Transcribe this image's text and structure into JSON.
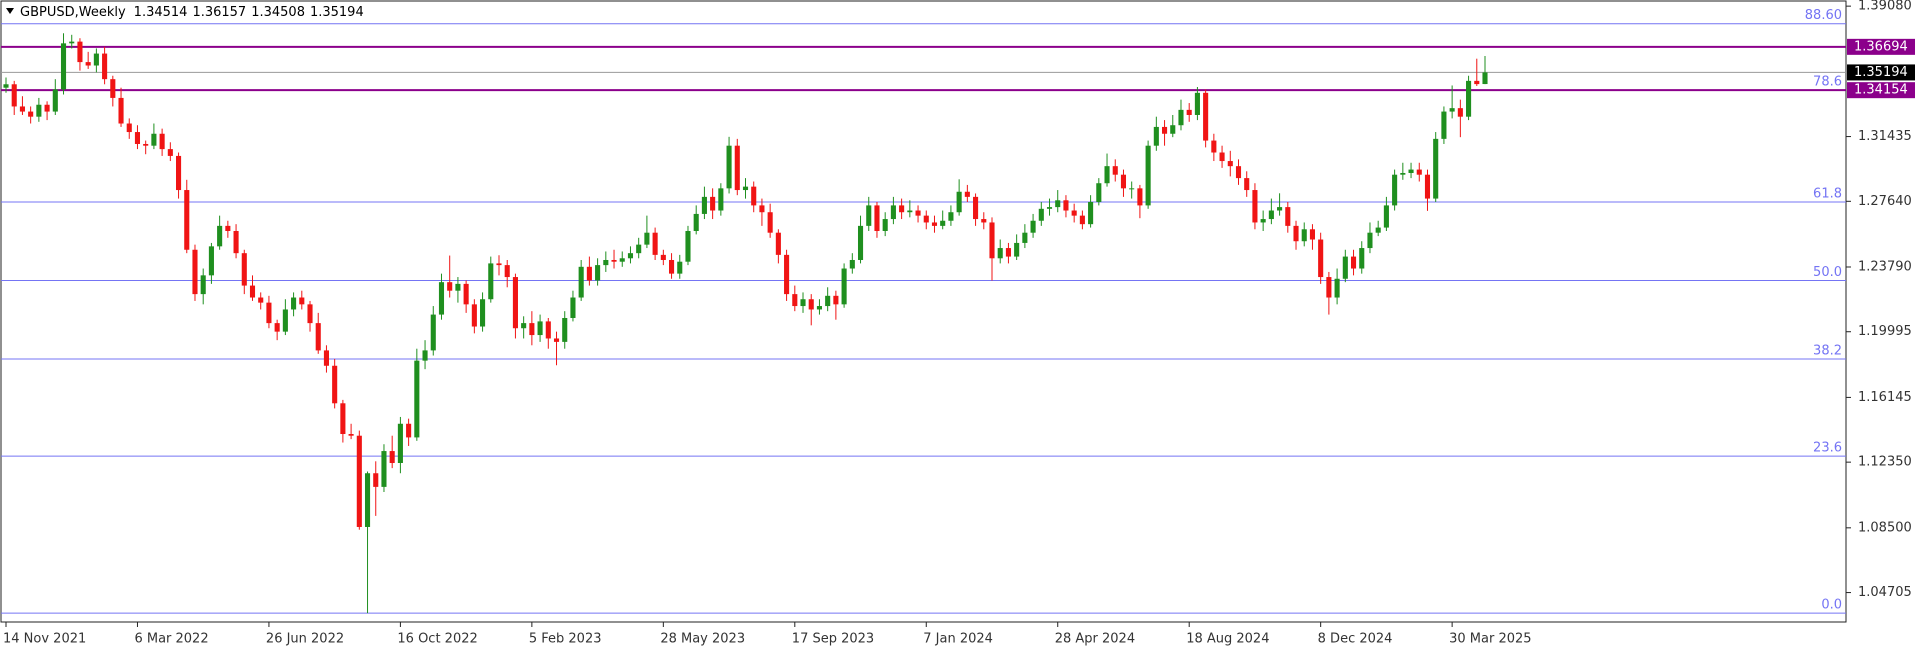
{
  "chart_data": {
    "type": "candlestick",
    "symbol": "GBPUSD,Weekly",
    "up_color": "#1f8f1f",
    "down_color": "#f01414",
    "grid": false,
    "ylim": [
      1.0298,
      1.3944
    ],
    "yticks": [
      {
        "value": 1.3908,
        "label": "1.39080"
      },
      1.31435,
      {
        "value": 1.2764,
        "label": "1.27640"
      },
      {
        "value": 1.2379,
        "label": "1.23790"
      },
      1.19995,
      1.16145,
      {
        "value": 1.1235,
        "label": "1.12350"
      },
      {
        "value": 1.085,
        "label": "1.08500"
      },
      1.04705
    ],
    "fib_color": "#7474f4",
    "fib_levels": [
      {
        "label": "88.60",
        "price": 1.3805
      },
      {
        "label": "78.6",
        "price": 1.3415
      },
      {
        "label": "61.8",
        "price": 1.276
      },
      {
        "label": "50.0",
        "price": 1.23
      },
      {
        "label": "38.2",
        "price": 1.184
      },
      {
        "label": "23.6",
        "price": 1.127
      },
      {
        "label": "0.0",
        "price": 1.035
      }
    ],
    "level_color": "#8b008b",
    "levels": [
      1.36694,
      1.34154
    ],
    "categories": [
      "14 Nov 2021",
      null,
      null,
      null,
      null,
      null,
      null,
      null,
      null,
      null,
      null,
      null,
      null,
      null,
      null,
      null,
      "6 Mar 2022",
      null,
      null,
      null,
      null,
      null,
      null,
      null,
      null,
      null,
      null,
      null,
      null,
      null,
      null,
      null,
      "26 Jun 2022",
      null,
      null,
      null,
      null,
      null,
      null,
      null,
      null,
      null,
      null,
      null,
      null,
      null,
      null,
      null,
      "16 Oct 2022",
      null,
      null,
      null,
      null,
      null,
      null,
      null,
      null,
      null,
      null,
      null,
      null,
      null,
      null,
      null,
      "5 Feb 2023",
      null,
      null,
      null,
      null,
      null,
      null,
      null,
      null,
      null,
      null,
      null,
      null,
      null,
      null,
      null,
      "28 May 2023",
      null,
      null,
      null,
      null,
      null,
      null,
      null,
      null,
      null,
      null,
      null,
      null,
      null,
      null,
      null,
      "17 Sep 2023",
      null,
      null,
      null,
      null,
      null,
      null,
      null,
      null,
      null,
      null,
      null,
      null,
      null,
      null,
      null,
      "7 Jan 2024",
      null,
      null,
      null,
      null,
      null,
      null,
      null,
      null,
      null,
      null,
      null,
      null,
      null,
      null,
      null,
      "28 Apr 2024",
      null,
      null,
      null,
      null,
      null,
      null,
      null,
      null,
      null,
      null,
      null,
      null,
      null,
      null,
      null,
      "18 Aug 2024",
      null,
      null,
      null,
      null,
      null,
      null,
      null,
      null,
      null,
      null,
      null,
      null,
      null,
      null,
      null,
      "8 Dec 2024",
      null,
      null,
      null,
      null,
      null,
      null,
      null,
      null,
      null,
      null,
      null,
      null,
      null,
      null,
      null,
      "30 Mar 2025",
      null,
      null,
      null,
      null
    ],
    "ohlc": [
      [
        1.343,
        1.349,
        1.34,
        1.345
      ],
      [
        1.345,
        1.347,
        1.327,
        1.332
      ],
      [
        1.332,
        1.338,
        1.327,
        1.329
      ],
      [
        1.329,
        1.332,
        1.322,
        1.326
      ],
      [
        1.326,
        1.337,
        1.323,
        1.333
      ],
      [
        1.333,
        1.335,
        1.324,
        1.329
      ],
      [
        1.329,
        1.348,
        1.327,
        1.342
      ],
      [
        1.342,
        1.3749,
        1.339,
        1.369
      ],
      [
        1.369,
        1.374,
        1.366,
        1.37
      ],
      [
        1.37,
        1.372,
        1.353,
        1.358
      ],
      [
        1.358,
        1.364,
        1.354,
        1.356
      ],
      [
        1.356,
        1.366,
        1.352,
        1.363
      ],
      [
        1.363,
        1.367,
        1.345,
        1.348
      ],
      [
        1.348,
        1.35,
        1.332,
        1.337
      ],
      [
        1.337,
        1.343,
        1.32,
        1.322
      ],
      [
        1.322,
        1.325,
        1.313,
        1.317
      ],
      [
        1.317,
        1.321,
        1.307,
        1.31
      ],
      [
        1.31,
        1.312,
        1.304,
        1.309
      ],
      [
        1.309,
        1.322,
        1.307,
        1.316
      ],
      [
        1.316,
        1.319,
        1.303,
        1.307
      ],
      [
        1.307,
        1.311,
        1.3,
        1.303
      ],
      [
        1.303,
        1.305,
        1.278,
        1.283
      ],
      [
        1.283,
        1.289,
        1.246,
        1.248
      ],
      [
        1.248,
        1.251,
        1.218,
        1.222
      ],
      [
        1.222,
        1.237,
        1.216,
        1.233
      ],
      [
        1.233,
        1.252,
        1.228,
        1.25
      ],
      [
        1.25,
        1.268,
        1.248,
        1.262
      ],
      [
        1.262,
        1.265,
        1.255,
        1.259
      ],
      [
        1.259,
        1.263,
        1.243,
        1.246
      ],
      [
        1.246,
        1.248,
        1.222,
        1.227
      ],
      [
        1.227,
        1.233,
        1.218,
        1.22
      ],
      [
        1.22,
        1.223,
        1.213,
        1.217
      ],
      [
        1.217,
        1.221,
        1.202,
        1.205
      ],
      [
        1.205,
        1.207,
        1.195,
        1.2
      ],
      [
        1.2,
        1.219,
        1.198,
        1.213
      ],
      [
        1.213,
        1.223,
        1.209,
        1.22
      ],
      [
        1.22,
        1.224,
        1.213,
        1.216
      ],
      [
        1.216,
        1.218,
        1.2,
        1.205
      ],
      [
        1.205,
        1.211,
        1.187,
        1.189
      ],
      [
        1.189,
        1.192,
        1.176,
        1.18
      ],
      [
        1.18,
        1.184,
        1.155,
        1.158
      ],
      [
        1.158,
        1.16,
        1.135,
        1.14
      ],
      [
        1.14,
        1.146,
        1.137,
        1.139
      ],
      [
        1.139,
        1.142,
        1.0839,
        1.0855
      ],
      [
        1.0855,
        1.118,
        1.035,
        1.117
      ],
      [
        1.117,
        1.124,
        1.092,
        1.109
      ],
      [
        1.109,
        1.134,
        1.106,
        1.13
      ],
      [
        1.13,
        1.139,
        1.12,
        1.123
      ],
      [
        1.123,
        1.15,
        1.117,
        1.146
      ],
      [
        1.146,
        1.149,
        1.133,
        1.138
      ],
      [
        1.138,
        1.19,
        1.136,
        1.183
      ],
      [
        1.183,
        1.195,
        1.178,
        1.189
      ],
      [
        1.189,
        1.215,
        1.186,
        1.21
      ],
      [
        1.21,
        1.234,
        1.207,
        1.229
      ],
      [
        1.229,
        1.2446,
        1.22,
        1.224
      ],
      [
        1.224,
        1.232,
        1.217,
        1.228
      ],
      [
        1.228,
        1.23,
        1.211,
        1.216
      ],
      [
        1.216,
        1.219,
        1.199,
        1.203
      ],
      [
        1.203,
        1.223,
        1.2,
        1.219
      ],
      [
        1.219,
        1.244,
        1.217,
        1.24
      ],
      [
        1.24,
        1.2448,
        1.233,
        1.239
      ],
      [
        1.239,
        1.242,
        1.226,
        1.232
      ],
      [
        1.232,
        1.234,
        1.196,
        1.202
      ],
      [
        1.202,
        1.209,
        1.196,
        1.205
      ],
      [
        1.205,
        1.212,
        1.192,
        1.198
      ],
      [
        1.198,
        1.21,
        1.194,
        1.206
      ],
      [
        1.206,
        1.208,
        1.19,
        1.196
      ],
      [
        1.196,
        1.2,
        1.1803,
        1.194
      ],
      [
        1.194,
        1.212,
        1.19,
        1.208
      ],
      [
        1.208,
        1.224,
        1.206,
        1.22
      ],
      [
        1.22,
        1.242,
        1.218,
        1.238
      ],
      [
        1.238,
        1.244,
        1.227,
        1.23
      ],
      [
        1.23,
        1.243,
        1.227,
        1.239
      ],
      [
        1.239,
        1.247,
        1.235,
        1.242
      ],
      [
        1.242,
        1.248,
        1.237,
        1.241
      ],
      [
        1.241,
        1.247,
        1.238,
        1.243
      ],
      [
        1.243,
        1.25,
        1.24,
        1.246
      ],
      [
        1.246,
        1.255,
        1.243,
        1.251
      ],
      [
        1.251,
        1.268,
        1.249,
        1.258
      ],
      [
        1.258,
        1.261,
        1.242,
        1.245
      ],
      [
        1.245,
        1.248,
        1.239,
        1.242
      ],
      [
        1.242,
        1.246,
        1.231,
        1.234
      ],
      [
        1.234,
        1.245,
        1.231,
        1.241
      ],
      [
        1.241,
        1.262,
        1.239,
        1.259
      ],
      [
        1.259,
        1.274,
        1.257,
        1.269
      ],
      [
        1.269,
        1.285,
        1.266,
        1.279
      ],
      [
        1.279,
        1.284,
        1.266,
        1.271
      ],
      [
        1.271,
        1.287,
        1.268,
        1.284
      ],
      [
        1.284,
        1.3142,
        1.281,
        1.309
      ],
      [
        1.309,
        1.313,
        1.28,
        1.283
      ],
      [
        1.283,
        1.29,
        1.278,
        1.285
      ],
      [
        1.285,
        1.288,
        1.27,
        1.274
      ],
      [
        1.274,
        1.278,
        1.262,
        1.27
      ],
      [
        1.27,
        1.275,
        1.255,
        1.258
      ],
      [
        1.258,
        1.26,
        1.24,
        1.245
      ],
      [
        1.245,
        1.248,
        1.218,
        1.222
      ],
      [
        1.222,
        1.227,
        1.212,
        1.215
      ],
      [
        1.215,
        1.223,
        1.211,
        1.219
      ],
      [
        1.219,
        1.222,
        1.2037,
        1.213
      ],
      [
        1.213,
        1.219,
        1.21,
        1.215
      ],
      [
        1.215,
        1.226,
        1.212,
        1.221
      ],
      [
        1.221,
        1.224,
        1.207,
        1.216
      ],
      [
        1.216,
        1.24,
        1.214,
        1.237
      ],
      [
        1.237,
        1.246,
        1.234,
        1.242
      ],
      [
        1.242,
        1.268,
        1.24,
        1.262
      ],
      [
        1.262,
        1.279,
        1.259,
        1.274
      ],
      [
        1.274,
        1.276,
        1.255,
        1.259
      ],
      [
        1.259,
        1.27,
        1.256,
        1.266
      ],
      [
        1.266,
        1.279,
        1.263,
        1.274
      ],
      [
        1.274,
        1.278,
        1.266,
        1.27
      ],
      [
        1.27,
        1.277,
        1.267,
        1.271
      ],
      [
        1.271,
        1.274,
        1.264,
        1.268
      ],
      [
        1.268,
        1.271,
        1.26,
        1.264
      ],
      [
        1.264,
        1.268,
        1.258,
        1.262
      ],
      [
        1.262,
        1.271,
        1.26,
        1.265
      ],
      [
        1.265,
        1.274,
        1.262,
        1.27
      ],
      [
        1.27,
        1.2893,
        1.268,
        1.282
      ],
      [
        1.282,
        1.286,
        1.276,
        1.279
      ],
      [
        1.279,
        1.281,
        1.262,
        1.266
      ],
      [
        1.266,
        1.27,
        1.26,
        1.264
      ],
      [
        1.264,
        1.267,
        1.23,
        1.243
      ],
      [
        1.243,
        1.254,
        1.24,
        1.249
      ],
      [
        1.249,
        1.252,
        1.24,
        1.244
      ],
      [
        1.244,
        1.257,
        1.242,
        1.252
      ],
      [
        1.252,
        1.263,
        1.249,
        1.258
      ],
      [
        1.258,
        1.269,
        1.255,
        1.265
      ],
      [
        1.265,
        1.276,
        1.262,
        1.272
      ],
      [
        1.272,
        1.278,
        1.268,
        1.273
      ],
      [
        1.273,
        1.283,
        1.27,
        1.277
      ],
      [
        1.277,
        1.28,
        1.267,
        1.271
      ],
      [
        1.271,
        1.275,
        1.264,
        1.268
      ],
      [
        1.268,
        1.271,
        1.26,
        1.263
      ],
      [
        1.263,
        1.28,
        1.261,
        1.276
      ],
      [
        1.276,
        1.29,
        1.274,
        1.287
      ],
      [
        1.287,
        1.3044,
        1.285,
        1.297
      ],
      [
        1.297,
        1.301,
        1.288,
        1.292
      ],
      [
        1.292,
        1.295,
        1.279,
        1.284
      ],
      [
        1.284,
        1.288,
        1.278,
        1.284
      ],
      [
        1.284,
        1.286,
        1.2665,
        1.274
      ],
      [
        1.274,
        1.312,
        1.272,
        1.309
      ],
      [
        1.309,
        1.326,
        1.306,
        1.32
      ],
      [
        1.32,
        1.324,
        1.309,
        1.316
      ],
      [
        1.316,
        1.327,
        1.314,
        1.321
      ],
      [
        1.321,
        1.336,
        1.318,
        1.33
      ],
      [
        1.33,
        1.334,
        1.323,
        1.327
      ],
      [
        1.327,
        1.3434,
        1.324,
        1.34
      ],
      [
        1.34,
        1.342,
        1.308,
        1.312
      ],
      [
        1.312,
        1.316,
        1.3,
        1.305
      ],
      [
        1.305,
        1.309,
        1.296,
        1.3
      ],
      [
        1.3,
        1.306,
        1.291,
        1.297
      ],
      [
        1.297,
        1.301,
        1.286,
        1.29
      ],
      [
        1.29,
        1.294,
        1.279,
        1.283
      ],
      [
        1.283,
        1.287,
        1.26,
        1.264
      ],
      [
        1.264,
        1.271,
        1.259,
        1.266
      ],
      [
        1.266,
        1.278,
        1.263,
        1.271
      ],
      [
        1.271,
        1.2811,
        1.268,
        1.273
      ],
      [
        1.273,
        1.276,
        1.258,
        1.262
      ],
      [
        1.262,
        1.265,
        1.248,
        1.253
      ],
      [
        1.253,
        1.264,
        1.25,
        1.26
      ],
      [
        1.26,
        1.263,
        1.248,
        1.254
      ],
      [
        1.254,
        1.258,
        1.228,
        1.232
      ],
      [
        1.232,
        1.235,
        1.21,
        1.22
      ],
      [
        1.22,
        1.237,
        1.216,
        1.231
      ],
      [
        1.231,
        1.248,
        1.229,
        1.244
      ],
      [
        1.244,
        1.248,
        1.233,
        1.237
      ],
      [
        1.237,
        1.253,
        1.234,
        1.249
      ],
      [
        1.249,
        1.264,
        1.246,
        1.258
      ],
      [
        1.258,
        1.265,
        1.256,
        1.261
      ],
      [
        1.261,
        1.279,
        1.259,
        1.274
      ],
      [
        1.274,
        1.295,
        1.271,
        1.292
      ],
      [
        1.292,
        1.299,
        1.289,
        1.293
      ],
      [
        1.293,
        1.299,
        1.29,
        1.295
      ],
      [
        1.295,
        1.299,
        1.288,
        1.292
      ],
      [
        1.292,
        1.295,
        1.2708,
        1.278
      ],
      [
        1.278,
        1.317,
        1.276,
        1.313
      ],
      [
        1.313,
        1.332,
        1.31,
        1.329
      ],
      [
        1.329,
        1.3443,
        1.325,
        1.331
      ],
      [
        1.331,
        1.336,
        1.314,
        1.326
      ],
      [
        1.326,
        1.35,
        1.324,
        1.347
      ],
      [
        1.347,
        1.36,
        1.344,
        1.3451
      ],
      [
        1.34514,
        1.36157,
        1.34508,
        1.35194
      ]
    ]
  }
}
